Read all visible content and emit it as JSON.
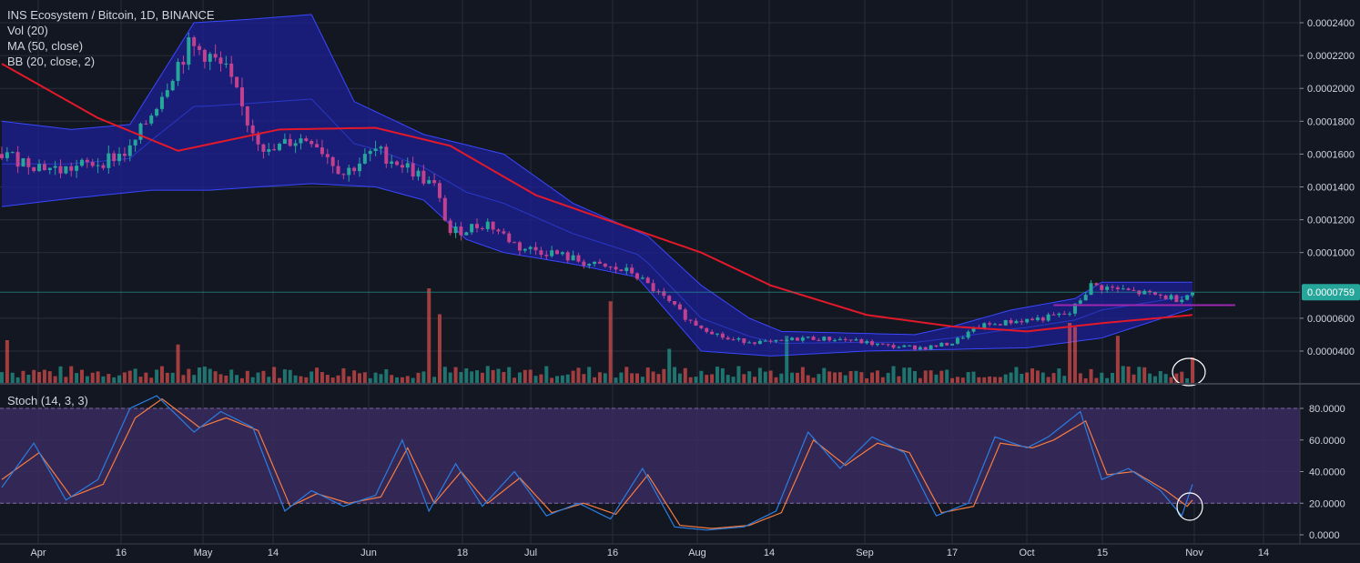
{
  "header": {
    "symbol_line": "INS Ecosystem / Bitcoin, 1D, BINANCE",
    "indicators": [
      "Vol (20)",
      "MA (50, close)",
      "BB (20, close, 2)"
    ],
    "stoch_label": "Stoch (14, 3, 3)"
  },
  "colors": {
    "background": "#131722",
    "grid": "#2a2e39",
    "up": "#26a69a",
    "down": "#ef5350",
    "candle_body": "#c2418f",
    "ma": "#e3192a",
    "bb_fill": "#1d1f8e",
    "bb_line": "#3a48ff",
    "stoch_band": "#3a2a5e",
    "stoch_k": "#2a7de1",
    "stoch_d": "#f57c42",
    "last_price_tag": "#26a69a",
    "support_line": "#9c27b0"
  },
  "last_price_label": "0.0000759",
  "chart_data": [
    {
      "type": "candlestick",
      "title": "INS Ecosystem / Bitcoin, 1D, BINANCE",
      "x_start": "2018-03-23",
      "x_end": "2018-11-01",
      "x_ticks": [
        "Apr",
        "16",
        "May",
        "14",
        "Jun",
        "18",
        "Jul",
        "16",
        "Aug",
        "14",
        "Sep",
        "17",
        "Oct",
        "15",
        "Nov",
        "14"
      ],
      "y_ticks": [
        "0.0000400",
        "0.0000600",
        "0.0001000",
        "0.0001200",
        "0.0001400",
        "0.0001600",
        "0.0001800",
        "0.0002000",
        "0.0002200",
        "0.0002400"
      ],
      "ylim": [
        2.25e-05,
        0.0002475
      ],
      "close_path": [
        [
          "2018-03-23",
          0.00016
        ],
        [
          "2018-03-28",
          0.000155
        ],
        [
          "2018-04-03",
          0.00015
        ],
        [
          "2018-04-10",
          0.000155
        ],
        [
          "2018-04-16",
          0.000162
        ],
        [
          "2018-04-20",
          0.000185
        ],
        [
          "2018-04-24",
          0.00021
        ],
        [
          "2018-04-27",
          0.000225
        ],
        [
          "2018-04-30",
          0.000222
        ],
        [
          "2018-05-04",
          0.00021
        ],
        [
          "2018-05-08",
          0.00018
        ],
        [
          "2018-05-12",
          0.00016
        ],
        [
          "2018-05-16",
          0.000168
        ],
        [
          "2018-05-20",
          0.00017
        ],
        [
          "2018-05-26",
          0.000148
        ],
        [
          "2018-06-01",
          0.000162
        ],
        [
          "2018-06-07",
          0.000152
        ],
        [
          "2018-06-12",
          0.00014
        ],
        [
          "2018-06-15",
          0.000112
        ],
        [
          "2018-06-22",
          0.000118
        ],
        [
          "2018-06-28",
          0.000103
        ],
        [
          "2018-07-04",
          0.0001
        ],
        [
          "2018-07-12",
          9.2e-05
        ],
        [
          "2018-07-19",
          8.8e-05
        ],
        [
          "2018-07-24",
          7.5e-05
        ],
        [
          "2018-07-30",
          5.8e-05
        ],
        [
          "2018-08-06",
          4.7e-05
        ],
        [
          "2018-08-14",
          4.5e-05
        ],
        [
          "2018-08-20",
          4.8e-05
        ],
        [
          "2018-08-28",
          4.7e-05
        ],
        [
          "2018-09-05",
          4.3e-05
        ],
        [
          "2018-09-12",
          4.2e-05
        ],
        [
          "2018-09-17",
          4.5e-05
        ],
        [
          "2018-09-22",
          5.5e-05
        ],
        [
          "2018-09-28",
          5.8e-05
        ],
        [
          "2018-10-04",
          6e-05
        ],
        [
          "2018-10-09",
          6.3e-05
        ],
        [
          "2018-10-13",
          8e-05
        ],
        [
          "2018-10-17",
          7.8e-05
        ],
        [
          "2018-10-23",
          7.5e-05
        ],
        [
          "2018-10-29",
          7.2e-05
        ],
        [
          "2018-11-01",
          7.59e-05
        ]
      ],
      "ma50": [
        [
          "2018-03-23",
          0.000215
        ],
        [
          "2018-04-10",
          0.000182
        ],
        [
          "2018-04-25",
          0.000162
        ],
        [
          "2018-05-14",
          0.000175
        ],
        [
          "2018-06-01",
          0.000176
        ],
        [
          "2018-06-15",
          0.000165
        ],
        [
          "2018-07-01",
          0.000135
        ],
        [
          "2018-07-16",
          0.000118
        ],
        [
          "2018-08-01",
          0.0001
        ],
        [
          "2018-08-14",
          8e-05
        ],
        [
          "2018-09-01",
          6.2e-05
        ],
        [
          "2018-09-17",
          5.5e-05
        ],
        [
          "2018-10-01",
          5.2e-05
        ],
        [
          "2018-10-15",
          5.7e-05
        ],
        [
          "2018-11-01",
          6.2e-05
        ]
      ],
      "bb_upper": [
        [
          "2018-03-23",
          0.00018
        ],
        [
          "2018-04-05",
          0.000175
        ],
        [
          "2018-04-16",
          0.000178
        ],
        [
          "2018-04-28",
          0.00024
        ],
        [
          "2018-05-08",
          0.000242
        ],
        [
          "2018-05-20",
          0.000245
        ],
        [
          "2018-05-28",
          0.000192
        ],
        [
          "2018-06-10",
          0.000172
        ],
        [
          "2018-06-15",
          0.000168
        ],
        [
          "2018-06-25",
          0.00016
        ],
        [
          "2018-07-08",
          0.00013
        ],
        [
          "2018-07-22",
          0.00011
        ],
        [
          "2018-08-01",
          8e-05
        ],
        [
          "2018-08-10",
          6e-05
        ],
        [
          "2018-08-16",
          5.2e-05
        ],
        [
          "2018-09-10",
          5e-05
        ],
        [
          "2018-09-17",
          5.5e-05
        ],
        [
          "2018-09-28",
          6.5e-05
        ],
        [
          "2018-10-10",
          7.2e-05
        ],
        [
          "2018-10-15",
          8.2e-05
        ],
        [
          "2018-11-01",
          8.2e-05
        ]
      ],
      "bb_lower": [
        [
          "2018-03-23",
          0.000128
        ],
        [
          "2018-04-05",
          0.000133
        ],
        [
          "2018-04-20",
          0.000138
        ],
        [
          "2018-05-01",
          0.000138
        ],
        [
          "2018-05-10",
          0.00014
        ],
        [
          "2018-05-20",
          0.000142
        ],
        [
          "2018-06-01",
          0.00014
        ],
        [
          "2018-06-10",
          0.000132
        ],
        [
          "2018-06-18",
          0.000108
        ],
        [
          "2018-06-25",
          0.0001
        ],
        [
          "2018-07-08",
          9.3e-05
        ],
        [
          "2018-07-20",
          8.5e-05
        ],
        [
          "2018-08-01",
          4e-05
        ],
        [
          "2018-08-14",
          3.7e-05
        ],
        [
          "2018-09-01",
          4e-05
        ],
        [
          "2018-09-17",
          4.1e-05
        ],
        [
          "2018-10-01",
          4.2e-05
        ],
        [
          "2018-10-15",
          4.8e-05
        ],
        [
          "2018-11-01",
          6.6e-05
        ]
      ],
      "support_line": [
        [
          "2018-10-06",
          6.8e-05
        ],
        [
          "2018-11-09",
          6.8e-05
        ]
      ],
      "last_price": 7.59e-05
    },
    {
      "type": "bar",
      "title": "Vol (20)",
      "spikes": [
        [
          "2018-03-24",
          0.4
        ],
        [
          "2018-04-25",
          0.35
        ],
        [
          "2018-06-11",
          1.0
        ],
        [
          "2018-06-13",
          0.7
        ],
        [
          "2018-07-15",
          0.85
        ],
        [
          "2018-07-26",
          0.3
        ],
        [
          "2018-08-17",
          0.45
        ],
        [
          "2018-10-09",
          0.6
        ],
        [
          "2018-10-10",
          0.55
        ],
        [
          "2018-10-18",
          0.45
        ],
        [
          "2018-11-01",
          0.2
        ]
      ]
    },
    {
      "type": "line",
      "title": "Stoch (14, 3, 3)",
      "y_ticks": [
        "0.0000",
        "20.0000",
        "40.0000",
        "60.0000",
        "80.0000"
      ],
      "ylim": [
        -2,
        92
      ],
      "band": [
        20,
        80
      ],
      "series": [
        {
          "name": "%K",
          "points": [
            [
              "2018-03-23",
              30
            ],
            [
              "2018-03-29",
              58
            ],
            [
              "2018-04-04",
              22
            ],
            [
              "2018-04-10",
              35
            ],
            [
              "2018-04-16",
              80
            ],
            [
              "2018-04-21",
              88
            ],
            [
              "2018-04-28",
              65
            ],
            [
              "2018-05-03",
              78
            ],
            [
              "2018-05-09",
              68
            ],
            [
              "2018-05-15",
              15
            ],
            [
              "2018-05-20",
              28
            ],
            [
              "2018-05-26",
              18
            ],
            [
              "2018-06-01",
              25
            ],
            [
              "2018-06-06",
              60
            ],
            [
              "2018-06-11",
              15
            ],
            [
              "2018-06-16",
              45
            ],
            [
              "2018-06-21",
              18
            ],
            [
              "2018-06-27",
              40
            ],
            [
              "2018-07-03",
              12
            ],
            [
              "2018-07-09",
              20
            ],
            [
              "2018-07-15",
              10
            ],
            [
              "2018-07-21",
              42
            ],
            [
              "2018-07-27",
              5
            ],
            [
              "2018-08-02",
              3
            ],
            [
              "2018-08-09",
              5
            ],
            [
              "2018-08-15",
              15
            ],
            [
              "2018-08-21",
              65
            ],
            [
              "2018-08-27",
              42
            ],
            [
              "2018-09-02",
              62
            ],
            [
              "2018-09-08",
              52
            ],
            [
              "2018-09-14",
              12
            ],
            [
              "2018-09-20",
              20
            ],
            [
              "2018-09-25",
              62
            ],
            [
              "2018-10-01",
              55
            ],
            [
              "2018-10-05",
              62
            ],
            [
              "2018-10-11",
              78
            ],
            [
              "2018-10-15",
              35
            ],
            [
              "2018-10-20",
              42
            ],
            [
              "2018-10-26",
              28
            ],
            [
              "2018-10-30",
              12
            ],
            [
              "2018-11-01",
              32
            ]
          ]
        },
        {
          "name": "%D",
          "points": [
            [
              "2018-03-23",
              35
            ],
            [
              "2018-03-30",
              52
            ],
            [
              "2018-04-05",
              24
            ],
            [
              "2018-04-11",
              32
            ],
            [
              "2018-04-17",
              74
            ],
            [
              "2018-04-22",
              86
            ],
            [
              "2018-04-29",
              68
            ],
            [
              "2018-05-04",
              74
            ],
            [
              "2018-05-10",
              66
            ],
            [
              "2018-05-16",
              18
            ],
            [
              "2018-05-21",
              26
            ],
            [
              "2018-05-27",
              20
            ],
            [
              "2018-06-02",
              24
            ],
            [
              "2018-06-07",
              55
            ],
            [
              "2018-06-12",
              20
            ],
            [
              "2018-06-17",
              40
            ],
            [
              "2018-06-22",
              20
            ],
            [
              "2018-06-28",
              36
            ],
            [
              "2018-07-04",
              14
            ],
            [
              "2018-07-10",
              20
            ],
            [
              "2018-07-16",
              13
            ],
            [
              "2018-07-22",
              38
            ],
            [
              "2018-07-28",
              6
            ],
            [
              "2018-08-03",
              4
            ],
            [
              "2018-08-10",
              6
            ],
            [
              "2018-08-16",
              14
            ],
            [
              "2018-08-22",
              60
            ],
            [
              "2018-08-28",
              44
            ],
            [
              "2018-09-03",
              58
            ],
            [
              "2018-09-09",
              52
            ],
            [
              "2018-09-15",
              14
            ],
            [
              "2018-09-21",
              18
            ],
            [
              "2018-09-26",
              58
            ],
            [
              "2018-10-02",
              55
            ],
            [
              "2018-10-06",
              60
            ],
            [
              "2018-10-12",
              72
            ],
            [
              "2018-10-16",
              38
            ],
            [
              "2018-10-21",
              40
            ],
            [
              "2018-10-27",
              28
            ],
            [
              "2018-10-31",
              18
            ],
            [
              "2018-11-01",
              22
            ]
          ]
        }
      ]
    }
  ]
}
